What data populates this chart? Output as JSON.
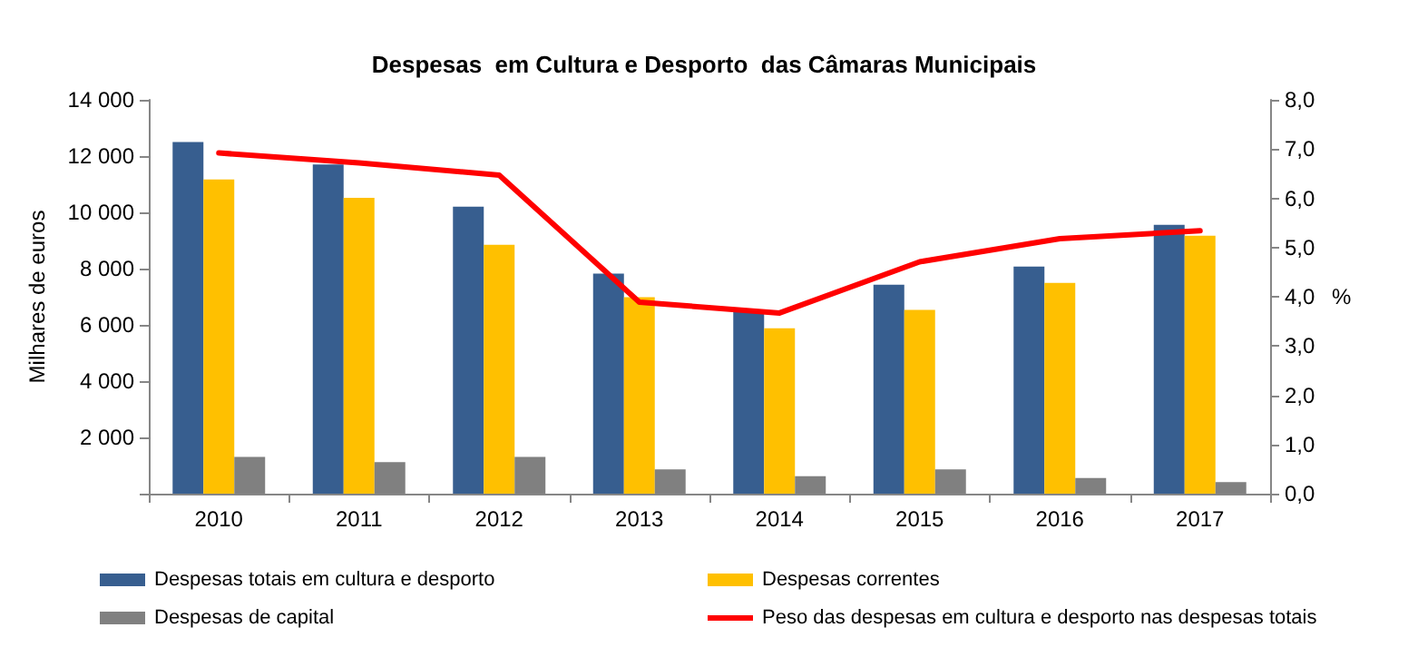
{
  "chart_data": {
    "type": "bar",
    "title": "Despesas  em Cultura e Desporto  das Câmaras Municipais",
    "ylabel": "Milhares de euros",
    "y2label": "%",
    "categories": [
      "2010",
      "2011",
      "2012",
      "2013",
      "2014",
      "2015",
      "2016",
      "2017"
    ],
    "series": [
      {
        "name": "Despesas totais em cultura e desporto",
        "color": "#375e8f",
        "values": [
          12500,
          11700,
          10200,
          7820,
          6480,
          7430,
          8070,
          9560
        ]
      },
      {
        "name": "Despesas correntes",
        "color": "#ffc000",
        "values": [
          11170,
          10520,
          8850,
          6980,
          5880,
          6530,
          7490,
          9170
        ]
      },
      {
        "name": "Despesas de capital",
        "color": "#808080",
        "values": [
          1310,
          1120,
          1310,
          860,
          620,
          860,
          560,
          410
        ]
      },
      {
        "name": "Peso das despesas em cultura e desporto nas despesas totais",
        "type": "line",
        "axis": "y2",
        "color": "#ff0000",
        "values": [
          6.92,
          6.72,
          6.47,
          3.89,
          3.67,
          4.71,
          5.18,
          5.34
        ]
      }
    ],
    "ylim": [
      0,
      14000
    ],
    "yticks": [
      {
        "value": 0,
        "label": null
      },
      {
        "value": 2000,
        "label": "2 000"
      },
      {
        "value": 4000,
        "label": "4 000"
      },
      {
        "value": 6000,
        "label": "6 000"
      },
      {
        "value": 8000,
        "label": "8 000"
      },
      {
        "value": 10000,
        "label": "10 000"
      },
      {
        "value": 12000,
        "label": "12 000"
      },
      {
        "value": 14000,
        "label": "14 000"
      }
    ],
    "y2lim": [
      0,
      8
    ],
    "y2ticks": [
      {
        "value": 0,
        "label": "0,0"
      },
      {
        "value": 1,
        "label": "1,0"
      },
      {
        "value": 2,
        "label": "2,0"
      },
      {
        "value": 3,
        "label": "3,0"
      },
      {
        "value": 4,
        "label": "4,0"
      },
      {
        "value": 5,
        "label": "5,0"
      },
      {
        "value": 6,
        "label": "6,0"
      },
      {
        "value": 7,
        "label": "7,0"
      },
      {
        "value": 8,
        "label": "8,0"
      }
    ],
    "grid": false,
    "legend": "bottom",
    "marker": "none",
    "line_style": "solid"
  }
}
